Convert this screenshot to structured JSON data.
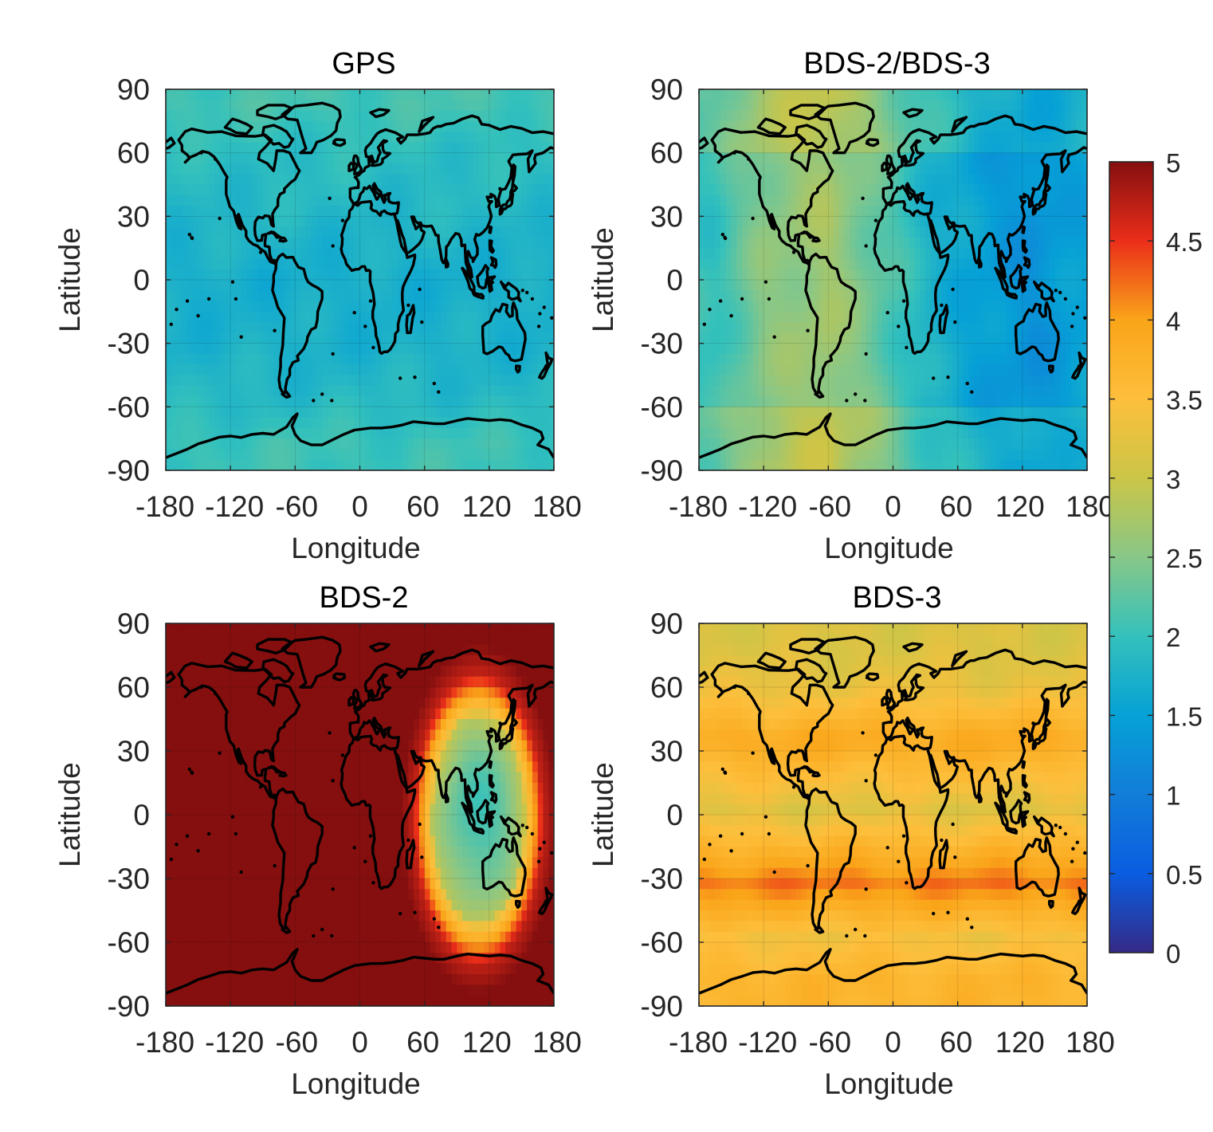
{
  "chart_data": [
    {
      "type": "heatmap",
      "title": "GPS",
      "xlabel": "Longitude",
      "ylabel": "Latitude",
      "xlim": [
        -180,
        180
      ],
      "ylim": [
        -90,
        90
      ],
      "xticks": [
        -180,
        -120,
        -60,
        0,
        60,
        120,
        180
      ],
      "yticks": [
        -90,
        -60,
        -30,
        0,
        30,
        60,
        90
      ],
      "xtick_labels": [
        "-180",
        "-120",
        "-60",
        "0",
        "60",
        "120",
        "180"
      ],
      "ytick_labels": [
        "-90",
        "-60",
        "-30",
        "0",
        "30",
        "60",
        "90"
      ],
      "lat_bands": [
        {
          "lat_range": [
            75,
            90
          ],
          "value": 2.1
        },
        {
          "lat_range": [
            50,
            75
          ],
          "value": 1.95
        },
        {
          "lat_range": [
            20,
            50
          ],
          "value": 1.85
        },
        {
          "lat_range": [
            -20,
            20
          ],
          "value": 1.7
        },
        {
          "lat_range": [
            -45,
            -20
          ],
          "value": 1.75
        },
        {
          "lat_range": [
            -65,
            -45
          ],
          "value": 1.85
        },
        {
          "lat_range": [
            -90,
            -65
          ],
          "value": 2.05
        }
      ]
    },
    {
      "type": "heatmap",
      "title": "BDS-2/BDS-3",
      "xlabel": "Longitude",
      "ylabel": "Latitude",
      "xlim": [
        -180,
        180
      ],
      "ylim": [
        -90,
        90
      ],
      "xticks": [
        -180,
        -120,
        -60,
        0,
        60,
        120,
        180
      ],
      "yticks": [
        -90,
        -60,
        -30,
        0,
        30,
        60,
        90
      ],
      "xtick_labels": [
        "-180",
        "-120",
        "-60",
        "0",
        "60",
        "120",
        "180"
      ],
      "ytick_labels": [
        "-90",
        "-60",
        "-30",
        "0",
        "30",
        "60",
        "90"
      ],
      "lon_bands": [
        {
          "lon_range": [
            -180,
            -150
          ],
          "value": 2.0
        },
        {
          "lon_range": [
            -150,
            -90
          ],
          "value": 2.5
        },
        {
          "lon_range": [
            -90,
            -30
          ],
          "value": 2.7
        },
        {
          "lon_range": [
            -30,
            0
          ],
          "value": 2.3
        },
        {
          "lon_range": [
            0,
            60
          ],
          "value": 1.8
        },
        {
          "lon_range": [
            60,
            100
          ],
          "value": 1.5
        },
        {
          "lon_range": [
            100,
            160
          ],
          "value": 1.3
        },
        {
          "lon_range": [
            160,
            180
          ],
          "value": 1.5
        }
      ]
    },
    {
      "type": "heatmap",
      "title": "BDS-2",
      "xlabel": "Longitude",
      "ylabel": "Latitude",
      "xlim": [
        -180,
        180
      ],
      "ylim": [
        -90,
        90
      ],
      "xticks": [
        -180,
        -120,
        -60,
        0,
        60,
        120,
        180
      ],
      "yticks": [
        -90,
        -60,
        -30,
        0,
        30,
        60,
        90
      ],
      "xtick_labels": [
        "-180",
        "-120",
        "-60",
        "0",
        "60",
        "120",
        "180"
      ],
      "ytick_labels": [
        "-90",
        "-60",
        "-30",
        "0",
        "30",
        "60",
        "90"
      ],
      "background_value": 5,
      "coverage_region": {
        "center_lon": 110,
        "center_lat": -2,
        "lon_half_width": 60,
        "lat_half_height": 68,
        "min_value": 2.1,
        "edge_value": 3.2
      }
    },
    {
      "type": "heatmap",
      "title": "BDS-3",
      "xlabel": "Longitude",
      "ylabel": "Latitude",
      "xlim": [
        -180,
        180
      ],
      "ylim": [
        -90,
        90
      ],
      "xticks": [
        -180,
        -120,
        -60,
        0,
        60,
        120,
        180
      ],
      "yticks": [
        -90,
        -60,
        -30,
        0,
        30,
        60,
        90
      ],
      "xtick_labels": [
        "-180",
        "-120",
        "-60",
        "0",
        "60",
        "120",
        "180"
      ],
      "ytick_labels": [
        "-90",
        "-60",
        "-30",
        "0",
        "30",
        "60",
        "90"
      ],
      "lat_bands": [
        {
          "lat_range": [
            70,
            90
          ],
          "value": 3.15
        },
        {
          "lat_range": [
            50,
            70
          ],
          "value": 3.3
        },
        {
          "lat_range": [
            20,
            50
          ],
          "value": 3.9
        },
        {
          "lat_range": [
            -15,
            20
          ],
          "value": 3.2
        },
        {
          "lat_range": [
            -50,
            -15
          ],
          "value": 4.2
        },
        {
          "lat_range": [
            -65,
            -50
          ],
          "value": 3.4
        },
        {
          "lat_range": [
            -90,
            -65
          ],
          "value": 3.7
        }
      ]
    }
  ],
  "colorbar": {
    "min": 0,
    "max": 5,
    "tick_values": [
      0,
      0.5,
      1,
      1.5,
      2,
      2.5,
      3,
      3.5,
      4,
      4.5,
      5
    ],
    "tick_labels": [
      "0",
      "0.5",
      "1",
      "1.5",
      "2",
      "2.5",
      "3",
      "3.5",
      "4",
      "4.5",
      "5"
    ],
    "colormap": "jet"
  },
  "colors": {
    "coastline": "#000000",
    "axis": "#262626",
    "text": "#262626"
  }
}
